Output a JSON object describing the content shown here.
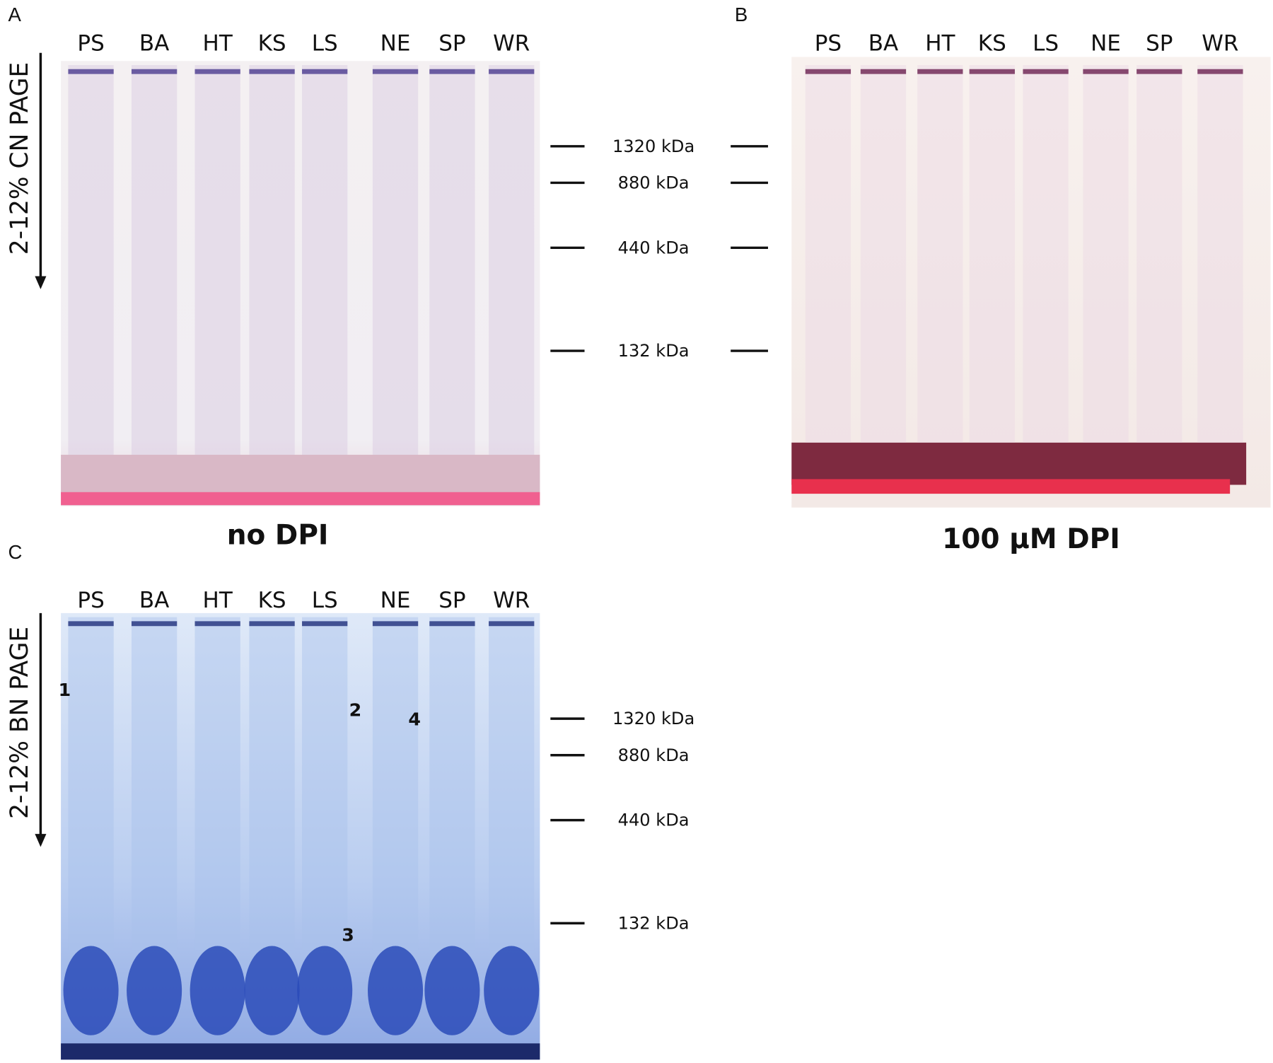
{
  "panels": [
    {
      "label": "A",
      "lanes": [
        "PS",
        "BA",
        "HT",
        "KS",
        "LS",
        "NE",
        "SP",
        "WR"
      ],
      "axis_label": "2-12% CN PAGE",
      "markers": [
        "1320 kDa",
        "880 kDa",
        "440 kDa",
        "132 kDa"
      ],
      "caption": "no DPI"
    },
    {
      "label": "B",
      "lanes": [
        "PS",
        "BA",
        "HT",
        "KS",
        "LS",
        "NE",
        "SP",
        "WR"
      ],
      "markers": [
        "1320 kDa",
        "880 kDa",
        "440 kDa",
        "132 kDa"
      ],
      "caption": "100 µM DPI"
    },
    {
      "label": "C",
      "lanes": [
        "PS",
        "BA",
        "HT",
        "KS",
        "LS",
        "NE",
        "SP",
        "WR"
      ],
      "axis_label": "2-12% BN PAGE",
      "markers": [
        "1320 kDa",
        "880 kDa",
        "440 kDa",
        "132 kDa"
      ],
      "band_numbers": [
        "1",
        "2",
        "3",
        "4"
      ]
    }
  ]
}
